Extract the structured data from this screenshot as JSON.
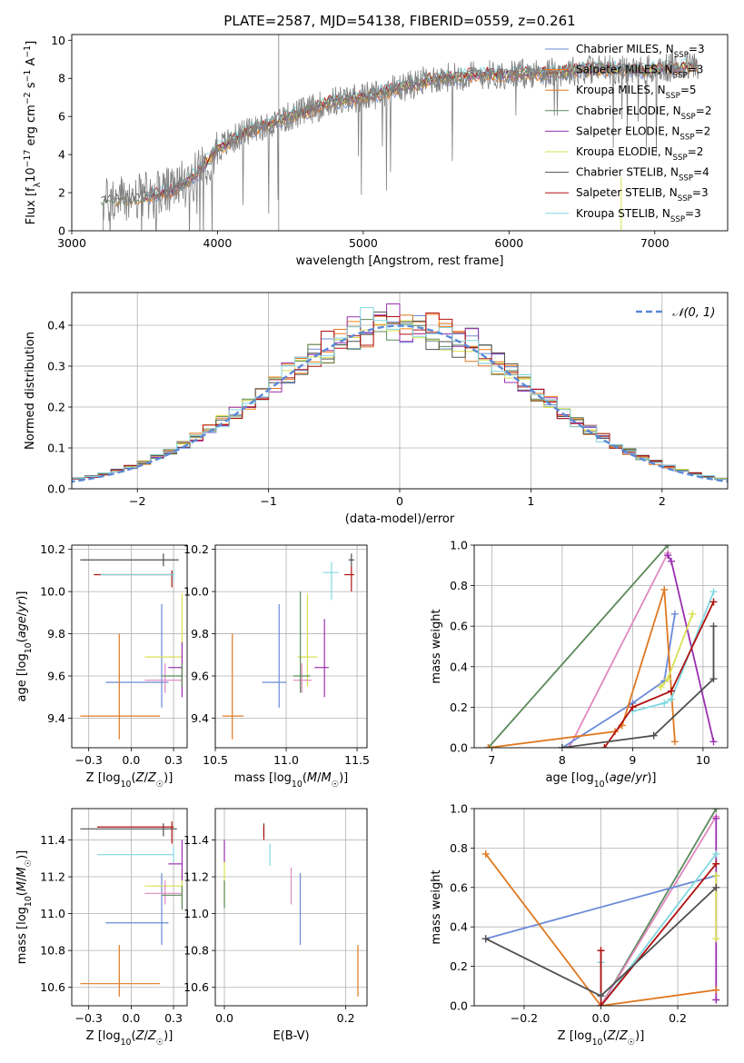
{
  "title": "PLATE=2587, MJD=54138, FIBERID=0559, z=0.261",
  "colors": [
    "#6a8ad8",
    "#ff7f0e",
    "#e07820",
    "#5a8a5a",
    "#9a30b0",
    "#d8e050",
    "#505050",
    "#b01010",
    "#80d8e0"
  ],
  "chart_data": [
    {
      "id": "spectrum",
      "type": "line",
      "xlabel": "wavelength [Angstrom, rest frame]",
      "ylabel": "Flux [f_λ10^-17 erg cm^-2 s^-1 A^-1]",
      "xlim": [
        3000,
        7500
      ],
      "ylim": [
        0,
        10.3
      ],
      "xticks": [
        3000,
        4000,
        5000,
        6000,
        7000
      ],
      "yticks": [
        0,
        2,
        4,
        6,
        8,
        10
      ],
      "legend_position": "right",
      "series": [
        {
          "name": "Chabrier MILES, N_SSP=3",
          "color": "#6a8ad8"
        },
        {
          "name": "Salpeter MILES, N_SSP=3",
          "color": "#ff7f0e"
        },
        {
          "name": "Kroupa MILES, N_SSP=5",
          "color": "#e07820"
        },
        {
          "name": "Chabrier ELODIE, N_SSP=2",
          "color": "#5a8a5a"
        },
        {
          "name": "Salpeter ELODIE, N_SSP=2",
          "color": "#9a30b0"
        },
        {
          "name": "Kroupa ELODIE, N_SSP=2",
          "color": "#d8e050"
        },
        {
          "name": "Chabrier STELIB, N_SSP=4",
          "color": "#505050"
        },
        {
          "name": "Salpeter STELIB, N_SSP=3",
          "color": "#b01010"
        },
        {
          "name": "Kroupa STELIB, N_SSP=3",
          "color": "#80d8e0"
        }
      ],
      "continuum": {
        "x": [
          3200,
          3400,
          3550,
          3700,
          3850,
          4000,
          4200,
          4500,
          4800,
          5000,
          5200,
          5500,
          5800,
          6000,
          6300,
          6600,
          6900,
          7200,
          7300
        ],
        "y": [
          1.5,
          1.7,
          1.85,
          2.1,
          2.9,
          4.3,
          5.2,
          6.0,
          6.8,
          7.0,
          7.4,
          8.0,
          8.2,
          8.2,
          8.3,
          8.5,
          8.4,
          8.6,
          8.7
        ]
      }
    },
    {
      "id": "residuals",
      "type": "histogram",
      "xlabel": "(data-model)/error",
      "ylabel": "Normed distribution",
      "xlim": [
        -2.5,
        2.5
      ],
      "ylim": [
        0,
        0.48
      ],
      "xticks": [
        -2,
        -1,
        0,
        1,
        2
      ],
      "yticks": [
        0.0,
        0.1,
        0.2,
        0.3,
        0.4
      ],
      "grid": true,
      "legend_position": "top-right",
      "reference": {
        "name": "𝒩(0, 1)",
        "mean": 0,
        "sigma": 1,
        "color": "#5a8ad8"
      },
      "bin_width": 0.1
    },
    {
      "id": "age-vs-Z",
      "type": "errorbar",
      "xlabel": "Z [log10(Z/Z☉)]",
      "ylabel": "age [log10(age/yr)]",
      "xlim": [
        -0.35,
        0.33
      ],
      "ylim": [
        9.26,
        10.22
      ],
      "xticks": [
        -0.25,
        0.0,
        0.25
      ],
      "yticks": [
        9.4,
        9.6,
        9.8,
        10.0,
        10.2
      ],
      "grid": true,
      "points": [
        {
          "x": 0.19,
          "y": 10.15,
          "xlo": -0.3,
          "xhi": 0.28,
          "ylo": 10.12,
          "yhi": 10.18,
          "color": "#505050"
        },
        {
          "x": 0.24,
          "y": 10.08,
          "xlo": -0.22,
          "xhi": 0.25,
          "ylo": 10.02,
          "yhi": 10.1,
          "color": "#b01010"
        },
        {
          "x": 0.25,
          "y": 10.08,
          "xlo": -0.18,
          "xhi": 0.25,
          "ylo": 10.05,
          "yhi": 10.1,
          "color": "#80d8e0"
        },
        {
          "x": 0.18,
          "y": 9.57,
          "xlo": -0.15,
          "xhi": 0.22,
          "ylo": 9.45,
          "yhi": 9.94,
          "color": "#6a8ad8"
        },
        {
          "x": 0.3,
          "y": 9.69,
          "xlo": 0.08,
          "xhi": 0.3,
          "ylo": 9.55,
          "yhi": 9.99,
          "color": "#d8e050"
        },
        {
          "x": 0.3,
          "y": 9.64,
          "xlo": 0.22,
          "xhi": 0.3,
          "ylo": 9.5,
          "yhi": 9.76,
          "color": "#9a30b0"
        },
        {
          "x": 0.2,
          "y": 9.58,
          "xlo": 0.08,
          "xhi": 0.3,
          "ylo": 9.52,
          "yhi": 9.66,
          "color": "#e088c0"
        },
        {
          "x": 0.3,
          "y": 9.6,
          "xlo": 0.18,
          "xhi": 0.3,
          "ylo": 9.55,
          "yhi": 9.66,
          "color": "#5a8a5a"
        },
        {
          "x": -0.07,
          "y": 9.41,
          "xlo": -0.3,
          "xhi": 0.17,
          "ylo": 9.3,
          "yhi": 9.8,
          "color": "#e07820"
        }
      ]
    },
    {
      "id": "age-vs-mass",
      "type": "errorbar",
      "xlabel": "mass [log10(M/M☉)]",
      "ylabel": "",
      "xlim": [
        10.5,
        11.57
      ],
      "ylim": [
        9.26,
        10.22
      ],
      "xticks": [
        10.5,
        11.0,
        11.5
      ],
      "yticks": [
        9.4,
        9.6,
        9.8,
        10.0,
        10.2
      ],
      "grid": true,
      "points": [
        {
          "x": 11.46,
          "y": 10.15,
          "xlo": 11.44,
          "xhi": 11.48,
          "ylo": 10.12,
          "yhi": 10.18,
          "color": "#505050"
        },
        {
          "x": 11.46,
          "y": 10.08,
          "xlo": 11.41,
          "xhi": 11.48,
          "ylo": 10.0,
          "yhi": 10.12,
          "color": "#b01010"
        },
        {
          "x": 11.32,
          "y": 10.09,
          "xlo": 11.26,
          "xhi": 11.37,
          "ylo": 9.96,
          "yhi": 10.14,
          "color": "#80d8e0"
        },
        {
          "x": 10.95,
          "y": 9.57,
          "xlo": 10.83,
          "xhi": 11.0,
          "ylo": 9.45,
          "yhi": 9.94,
          "color": "#6a8ad8"
        },
        {
          "x": 11.15,
          "y": 9.69,
          "xlo": 11.08,
          "xhi": 11.22,
          "ylo": 9.55,
          "yhi": 9.99,
          "color": "#d8e050"
        },
        {
          "x": 11.27,
          "y": 9.64,
          "xlo": 11.2,
          "xhi": 11.3,
          "ylo": 9.5,
          "yhi": 9.87,
          "color": "#9a30b0"
        },
        {
          "x": 11.11,
          "y": 9.58,
          "xlo": 11.05,
          "xhi": 11.18,
          "ylo": 9.52,
          "yhi": 9.66,
          "color": "#e088c0"
        },
        {
          "x": 11.1,
          "y": 9.6,
          "xlo": 11.05,
          "xhi": 11.17,
          "ylo": 9.52,
          "yhi": 10.0,
          "color": "#5a8a5a"
        },
        {
          "x": 10.62,
          "y": 9.41,
          "xlo": 10.55,
          "xhi": 10.7,
          "ylo": 9.3,
          "yhi": 9.8,
          "color": "#e07820"
        }
      ]
    },
    {
      "id": "weight-vs-age",
      "type": "line",
      "xlabel": "age [log10(age/yr)]",
      "ylabel": "mass weight",
      "xlim": [
        6.75,
        10.35
      ],
      "ylim": [
        0,
        1.0
      ],
      "xticks": [
        7,
        8,
        9,
        10
      ],
      "yticks": [
        0.0,
        0.2,
        0.4,
        0.6,
        0.8,
        1.0
      ],
      "grid": true,
      "series": [
        {
          "color": "#5a8a5a",
          "x": [
            6.95,
            9.5
          ],
          "y": [
            0.0,
            1.0
          ]
        },
        {
          "color": "#e088c0",
          "x": [
            8.1,
            9.5
          ],
          "y": [
            0.0,
            0.96
          ]
        },
        {
          "color": "#9a30b0",
          "x": [
            9.5,
            9.55,
            10.15
          ],
          "y": [
            0.95,
            0.92,
            0.03
          ]
        },
        {
          "color": "#6a8ad8",
          "x": [
            8.0,
            9.0,
            9.45,
            9.6
          ],
          "y": [
            0.0,
            0.22,
            0.33,
            0.66
          ]
        },
        {
          "color": "#e07820",
          "x": [
            6.95,
            8.75,
            8.85,
            9.45,
            9.6
          ],
          "y": [
            0.0,
            0.08,
            0.11,
            0.78,
            0.03
          ]
        },
        {
          "color": "#d8e050",
          "x": [
            9.4,
            9.5,
            9.85
          ],
          "y": [
            0.3,
            0.34,
            0.66
          ]
        },
        {
          "color": "#80d8e0",
          "x": [
            9.0,
            9.45,
            9.55,
            10.15
          ],
          "y": [
            0.18,
            0.22,
            0.24,
            0.77
          ]
        },
        {
          "color": "#b01010",
          "x": [
            8.6,
            9.0,
            9.55,
            10.15
          ],
          "y": [
            0.0,
            0.2,
            0.28,
            0.72
          ]
        },
        {
          "color": "#505050",
          "x": [
            8.0,
            9.3,
            10.15,
            10.15
          ],
          "y": [
            0.0,
            0.06,
            0.34,
            0.6
          ]
        }
      ]
    },
    {
      "id": "mass-vs-Z",
      "type": "errorbar",
      "xlabel": "Z [log10(Z/Z☉)]",
      "ylabel": "mass [log10(M/M☉)]",
      "xlim": [
        -0.35,
        0.33
      ],
      "ylim": [
        10.5,
        11.57
      ],
      "xticks": [
        -0.25,
        0.0,
        0.25
      ],
      "yticks": [
        10.6,
        10.8,
        11.0,
        11.2,
        11.4
      ],
      "grid": true,
      "points": [
        {
          "x": 0.19,
          "y": 11.46,
          "xlo": -0.3,
          "xhi": 0.27,
          "ylo": 11.42,
          "yhi": 11.49,
          "color": "#505050"
        },
        {
          "x": 0.24,
          "y": 11.47,
          "xlo": -0.2,
          "xhi": 0.25,
          "ylo": 11.38,
          "yhi": 11.5,
          "color": "#b01010"
        },
        {
          "x": 0.25,
          "y": 11.32,
          "xlo": -0.2,
          "xhi": 0.25,
          "ylo": 11.28,
          "yhi": 11.36,
          "color": "#80d8e0"
        },
        {
          "x": 0.18,
          "y": 10.95,
          "xlo": -0.15,
          "xhi": 0.22,
          "ylo": 10.83,
          "yhi": 11.22,
          "color": "#6a8ad8"
        },
        {
          "x": 0.3,
          "y": 11.15,
          "xlo": 0.08,
          "xhi": 0.3,
          "ylo": 11.05,
          "yhi": 11.25,
          "color": "#d8e050"
        },
        {
          "x": 0.3,
          "y": 11.27,
          "xlo": 0.22,
          "xhi": 0.3,
          "ylo": 11.18,
          "yhi": 11.4,
          "color": "#9a30b0"
        },
        {
          "x": 0.2,
          "y": 11.11,
          "xlo": 0.08,
          "xhi": 0.3,
          "ylo": 11.05,
          "yhi": 11.18,
          "color": "#e088c0"
        },
        {
          "x": 0.3,
          "y": 11.1,
          "xlo": 0.18,
          "xhi": 0.3,
          "ylo": 11.02,
          "yhi": 11.15,
          "color": "#5a8a5a"
        },
        {
          "x": -0.07,
          "y": 10.62,
          "xlo": -0.3,
          "xhi": 0.17,
          "ylo": 10.55,
          "yhi": 10.83,
          "color": "#e07820"
        }
      ]
    },
    {
      "id": "mass-vs-EBV",
      "type": "errorbar",
      "xlabel": "E(B-V)",
      "ylabel": "",
      "xlim": [
        -0.015,
        0.235
      ],
      "ylim": [
        10.5,
        11.57
      ],
      "xticks": [
        0.0,
        0.2
      ],
      "yticks": [
        10.6,
        10.8,
        11.0,
        11.2,
        11.4
      ],
      "grid": true,
      "points": [
        {
          "x": 0.065,
          "y": 11.46,
          "ylo": 11.42,
          "yhi": 11.49,
          "color": "#505050"
        },
        {
          "x": 0.065,
          "y": 11.45,
          "ylo": 11.4,
          "yhi": 11.48,
          "color": "#b01010"
        },
        {
          "x": 0.075,
          "y": 11.32,
          "ylo": 11.26,
          "yhi": 11.38,
          "color": "#80d8e0"
        },
        {
          "x": 0.125,
          "y": 10.95,
          "ylo": 10.83,
          "yhi": 11.22,
          "color": "#6a8ad8"
        },
        {
          "x": 0.0,
          "y": 11.15,
          "ylo": 11.05,
          "yhi": 11.28,
          "color": "#d8e050"
        },
        {
          "x": 0.0,
          "y": 11.35,
          "ylo": 11.28,
          "yhi": 11.4,
          "color": "#9a30b0"
        },
        {
          "x": 0.11,
          "y": 11.11,
          "ylo": 11.05,
          "yhi": 11.25,
          "color": "#e088c0"
        },
        {
          "x": 0.0,
          "y": 11.1,
          "ylo": 11.03,
          "yhi": 11.18,
          "color": "#5a8a5a"
        },
        {
          "x": 0.22,
          "y": 10.62,
          "ylo": 10.55,
          "yhi": 10.83,
          "color": "#e07820"
        }
      ]
    },
    {
      "id": "weight-vs-Z",
      "type": "line",
      "xlabel": "Z [log10(Z/Z☉)]",
      "ylabel": "mass weight",
      "xlim": [
        -0.33,
        0.33
      ],
      "ylim": [
        0,
        1.0
      ],
      "xticks": [
        -0.2,
        0.0,
        0.2
      ],
      "yticks": [
        0.0,
        0.2,
        0.4,
        0.6,
        0.8,
        1.0
      ],
      "grid": true,
      "series": [
        {
          "color": "#5a8a5a",
          "x": [
            0.0,
            0.3
          ],
          "y": [
            0.0,
            1.0
          ]
        },
        {
          "color": "#e088c0",
          "x": [
            0.0,
            0.3
          ],
          "y": [
            0.0,
            0.96
          ]
        },
        {
          "color": "#9a30b0",
          "x": [
            0.3,
            0.3
          ],
          "y": [
            0.95,
            0.03
          ]
        },
        {
          "color": "#6a8ad8",
          "x": [
            -0.3,
            0.3
          ],
          "y": [
            0.34,
            0.66
          ]
        },
        {
          "color": "#e07820",
          "x": [
            -0.3,
            0.0,
            0.3
          ],
          "y": [
            0.77,
            0.0,
            0.08
          ]
        },
        {
          "color": "#d8e050",
          "x": [
            0.3,
            0.3
          ],
          "y": [
            0.66,
            0.34
          ]
        },
        {
          "color": "#80d8e0",
          "x": [
            0.0,
            0.0,
            0.3
          ],
          "y": [
            0.22,
            0.0,
            0.77
          ]
        },
        {
          "color": "#b01010",
          "x": [
            0.0,
            0.0,
            0.3
          ],
          "y": [
            0.28,
            0.0,
            0.72
          ]
        },
        {
          "color": "#505050",
          "x": [
            -0.3,
            0.0,
            0.3
          ],
          "y": [
            0.34,
            0.05,
            0.6
          ]
        }
      ]
    }
  ]
}
